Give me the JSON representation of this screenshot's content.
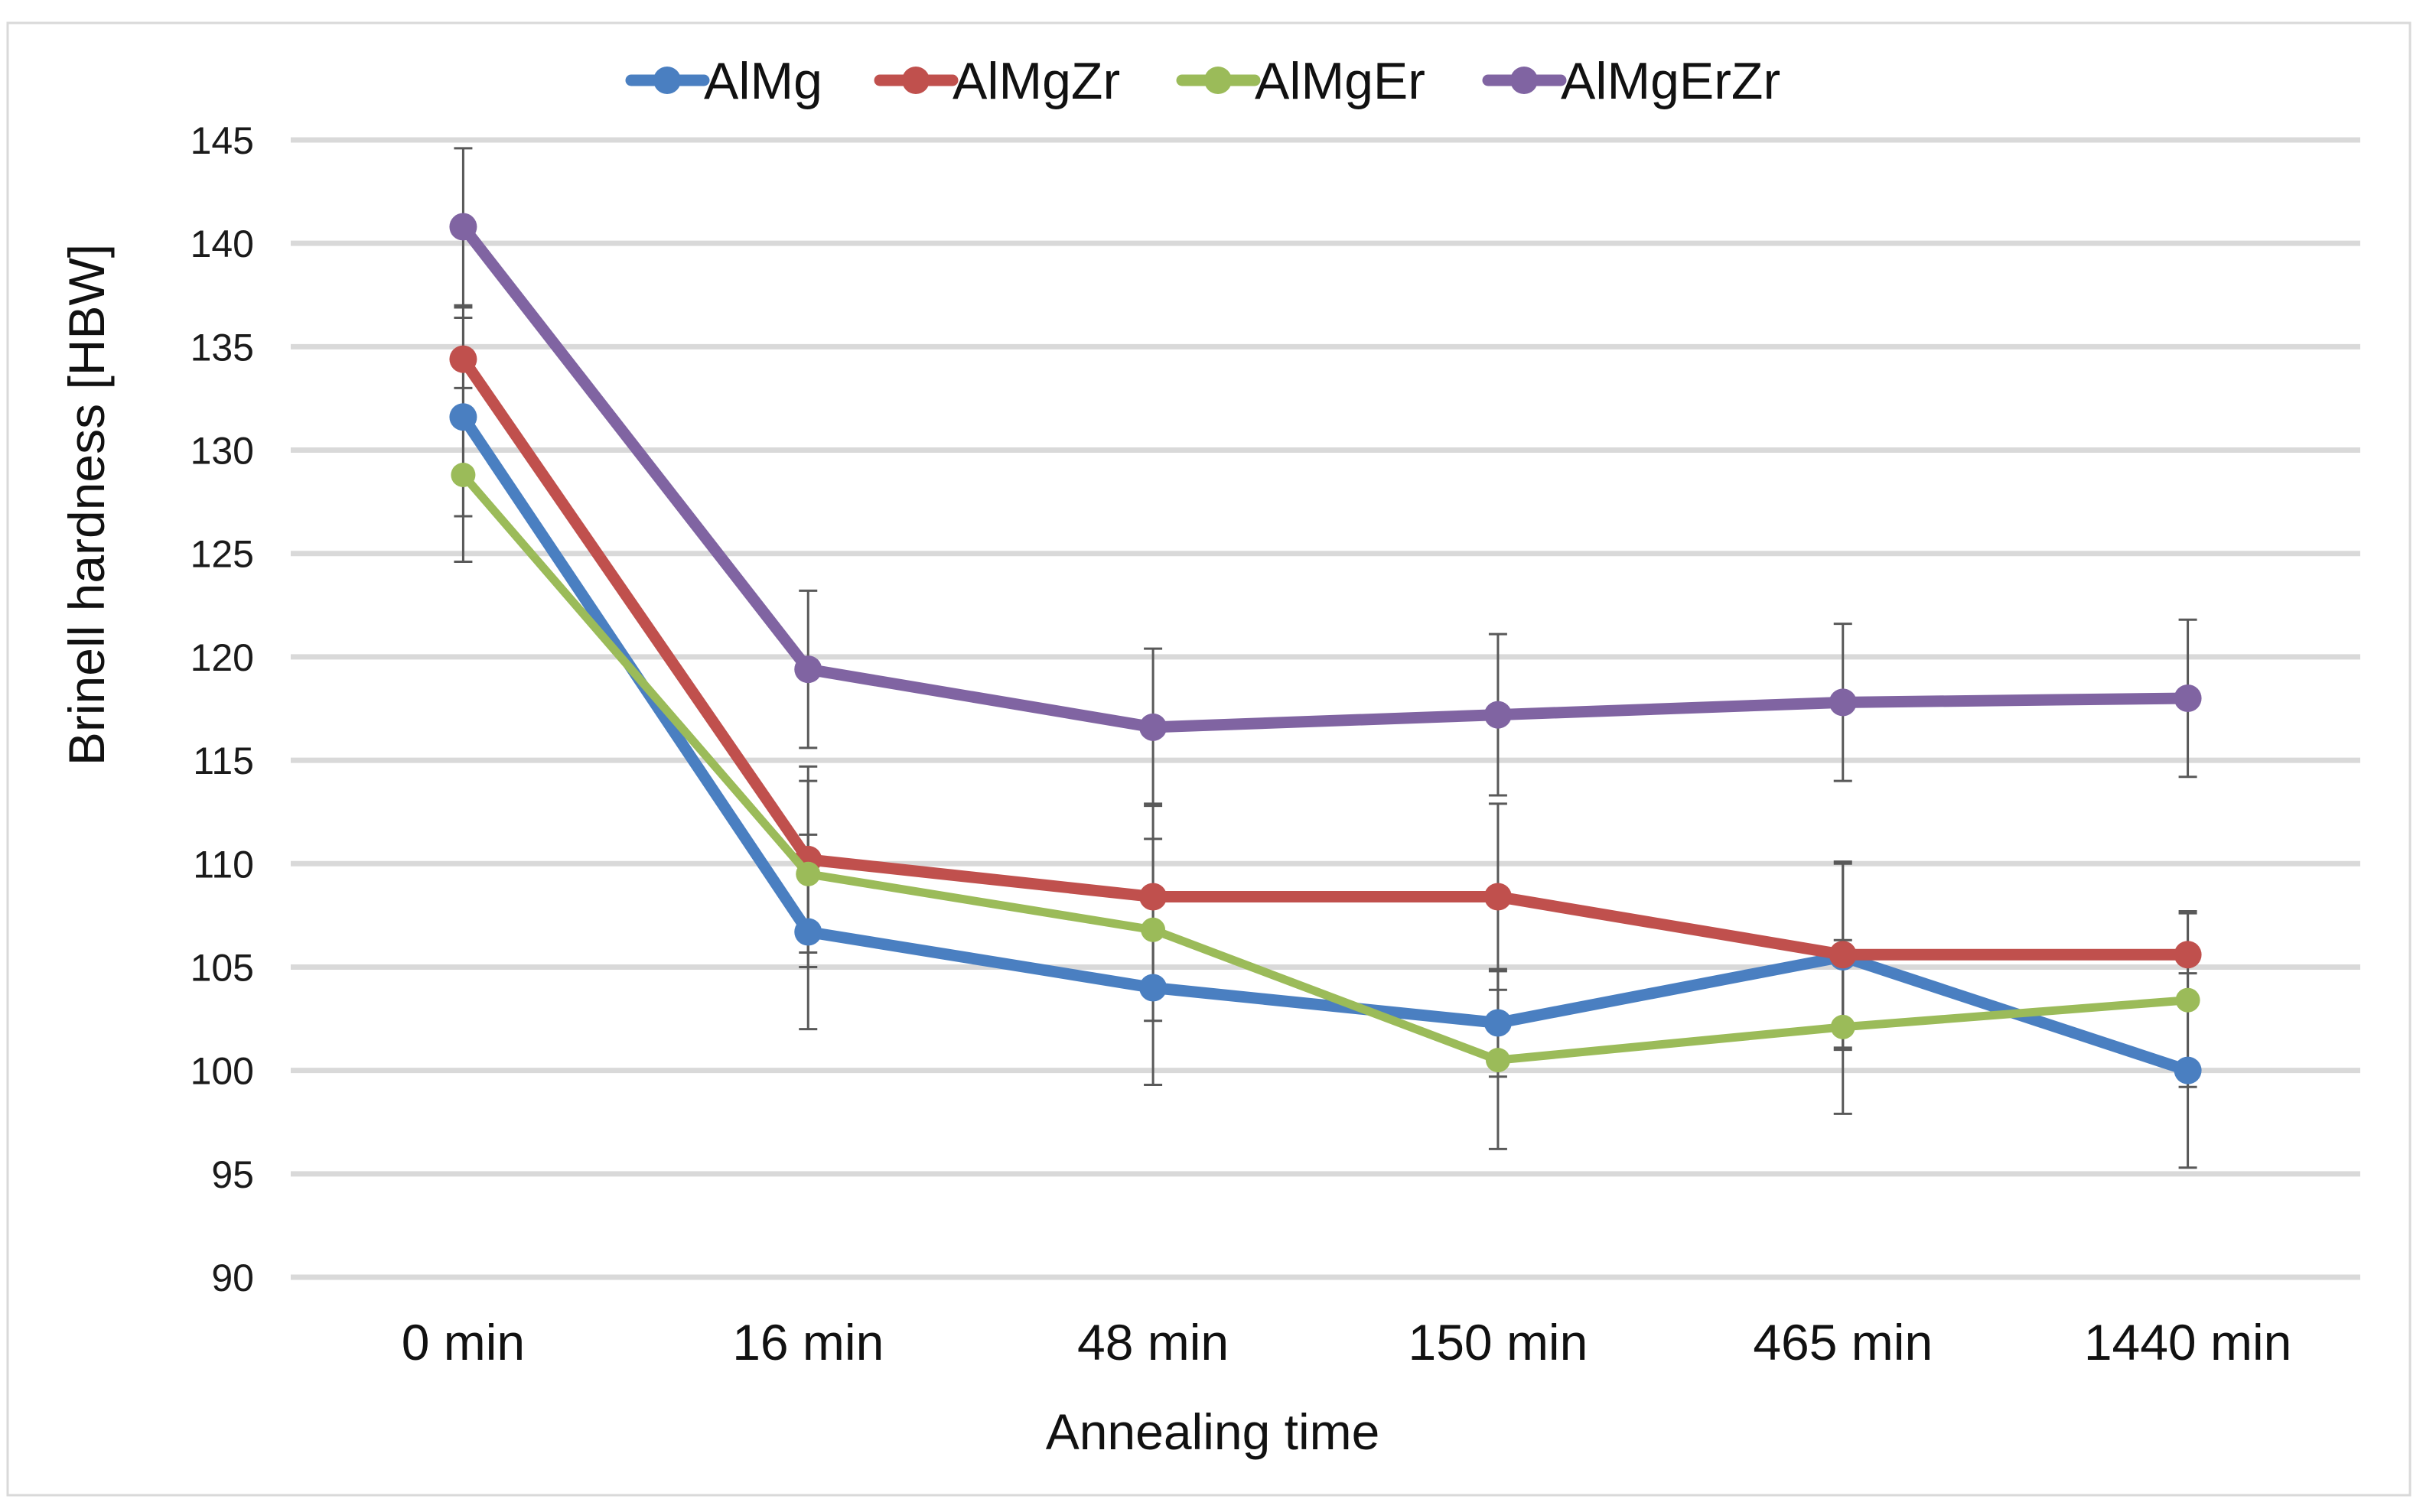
{
  "chart_data": {
    "type": "line",
    "title": "",
    "xlabel": "Annealing time",
    "ylabel": "Brinell hardness [HBW]",
    "ylim": [
      90,
      145
    ],
    "y_ticks": [
      90,
      95,
      100,
      105,
      110,
      115,
      120,
      125,
      130,
      135,
      140,
      145
    ],
    "y_tick_labels": [
      "90",
      "95",
      "100",
      "105",
      "110",
      "115",
      "120",
      "125",
      "130",
      "135",
      "140",
      "145"
    ],
    "categories": [
      "0 min",
      "16 min",
      "48 min",
      "150 min",
      "465 min",
      "1440 min"
    ],
    "grid": true,
    "legend_position": "top",
    "series": [
      {
        "name": "AlMg",
        "color": "#4a7fc1",
        "values": [
          131.6,
          106.7,
          104.0,
          102.3,
          105.5,
          100.0
        ],
        "errors": [
          4.8,
          4.7,
          4.7,
          2.6,
          4.5,
          4.7
        ]
      },
      {
        "name": "AlMgZr",
        "color": "#c0504d",
        "values": [
          134.4,
          110.2,
          108.4,
          108.4,
          105.6,
          105.6
        ],
        "errors": [
          2.5,
          4.5,
          4.5,
          4.5,
          4.5,
          2.1
        ]
      },
      {
        "name": "AlMgEr",
        "color": "#9bbb59",
        "values": [
          128.8,
          109.5,
          106.8,
          100.5,
          102.1,
          103.4
        ],
        "errors": [
          4.2,
          4.5,
          4.4,
          4.3,
          4.2,
          4.2
        ]
      },
      {
        "name": "AlMgErZr",
        "color": "#8064a2",
        "values": [
          140.8,
          119.4,
          116.6,
          117.2,
          117.8,
          118.0
        ],
        "errors": [
          3.8,
          3.8,
          3.8,
          3.9,
          3.8,
          3.8
        ]
      }
    ]
  }
}
